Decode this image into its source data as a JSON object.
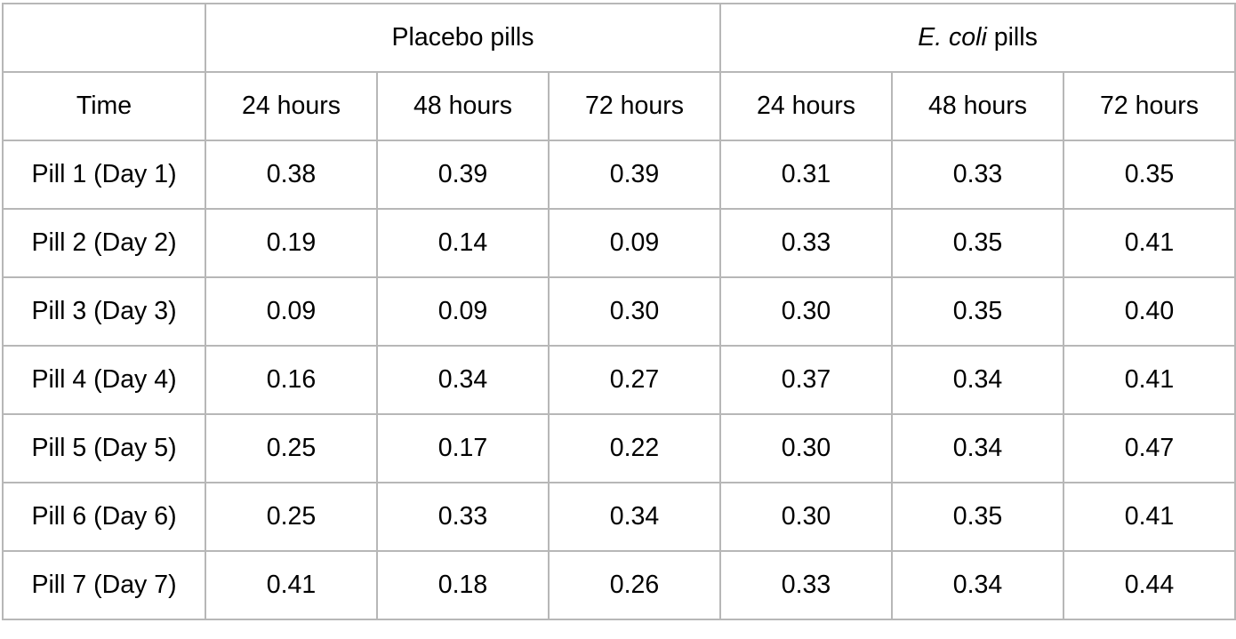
{
  "table": {
    "group_headers": {
      "placebo": "Placebo pills",
      "ecoli_italic": "E. coli",
      "ecoli_rest": " pills"
    },
    "time_label": "Time",
    "columns": [
      "24 hours",
      "48 hours",
      "72 hours",
      "24 hours",
      "48 hours",
      "72 hours"
    ],
    "rows": [
      {
        "label": "Pill 1 (Day 1)",
        "values": [
          "0.38",
          "0.39",
          "0.39",
          "0.31",
          "0.33",
          "0.35"
        ]
      },
      {
        "label": "Pill 2 (Day 2)",
        "values": [
          "0.19",
          "0.14",
          "0.09",
          "0.33",
          "0.35",
          "0.41"
        ]
      },
      {
        "label": "Pill 3 (Day 3)",
        "values": [
          "0.09",
          "0.09",
          "0.30",
          "0.30",
          "0.35",
          "0.40"
        ]
      },
      {
        "label": "Pill 4 (Day 4)",
        "values": [
          "0.16",
          "0.34",
          "0.27",
          "0.37",
          "0.34",
          "0.41"
        ]
      },
      {
        "label": "Pill 5 (Day 5)",
        "values": [
          "0.25",
          "0.17",
          "0.22",
          "0.30",
          "0.34",
          "0.47"
        ]
      },
      {
        "label": "Pill 6 (Day 6)",
        "values": [
          "0.25",
          "0.33",
          "0.34",
          "0.30",
          "0.35",
          "0.41"
        ]
      },
      {
        "label": "Pill 7 (Day 7)",
        "values": [
          "0.41",
          "0.18",
          "0.26",
          "0.33",
          "0.34",
          "0.44"
        ]
      }
    ]
  }
}
